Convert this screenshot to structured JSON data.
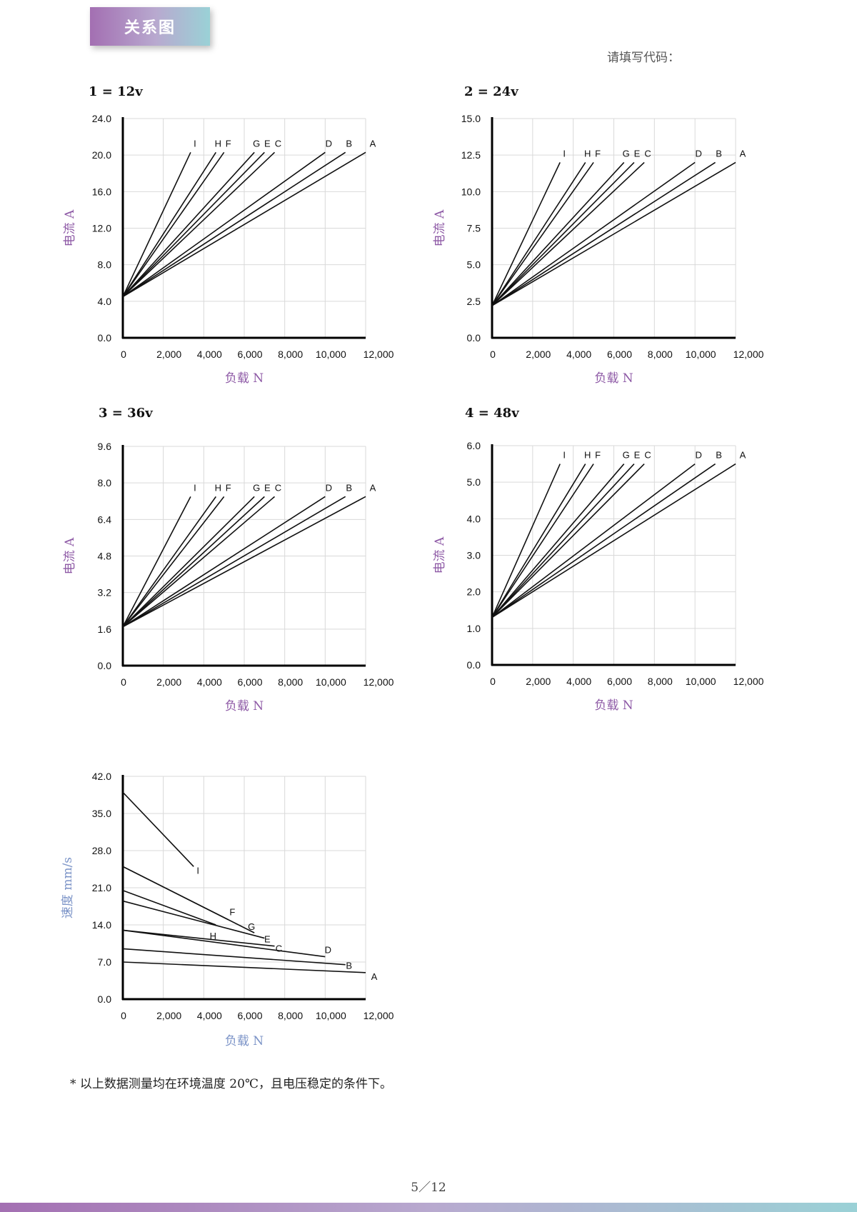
{
  "header": {
    "title": "关系图"
  },
  "code_label": "请填写代码：",
  "footnote": "* 以上数据测量均在环境温度 20℃，且电压稳定的条件下。",
  "page_number": "5／12",
  "colors": {
    "accent_purple": "#8e5aa6",
    "speed_label_blue": "#7b93c7",
    "line": "#111111",
    "grid": "#d9d9d9"
  },
  "chart_data": [
    {
      "type": "line",
      "title": "1 = 12v",
      "xlabel": "负载 N",
      "ylabel": "电流 A",
      "xlim": [
        0,
        12000
      ],
      "ylim": [
        0,
        24
      ],
      "x_ticks": [
        "0",
        "2,000",
        "4,000",
        "6,000",
        "8,000",
        "10,000",
        "12,000"
      ],
      "y_ticks": [
        "0.0",
        "4.0",
        "8.0",
        "12.0",
        "16.0",
        "20.0",
        "24.0"
      ],
      "grid": true,
      "series": [
        {
          "name": "I",
          "x": [
            0,
            3350
          ],
          "y": [
            4.5,
            20.3
          ]
        },
        {
          "name": "H",
          "x": [
            0,
            4600
          ],
          "y": [
            4.5,
            20.3
          ]
        },
        {
          "name": "F",
          "x": [
            0,
            5000
          ],
          "y": [
            4.5,
            20.3
          ]
        },
        {
          "name": "G",
          "x": [
            0,
            6500
          ],
          "y": [
            4.5,
            20.3
          ]
        },
        {
          "name": "E",
          "x": [
            0,
            7000
          ],
          "y": [
            4.5,
            20.3
          ]
        },
        {
          "name": "C",
          "x": [
            0,
            7500
          ],
          "y": [
            4.5,
            20.3
          ]
        },
        {
          "name": "D",
          "x": [
            0,
            10000
          ],
          "y": [
            4.5,
            20.3
          ]
        },
        {
          "name": "B",
          "x": [
            0,
            11000
          ],
          "y": [
            4.5,
            20.3
          ]
        },
        {
          "name": "A",
          "x": [
            0,
            12000
          ],
          "y": [
            4.5,
            20.3
          ]
        }
      ]
    },
    {
      "type": "line",
      "title": "2 = 24v",
      "xlabel": "负载 N",
      "ylabel": "电流 A",
      "xlim": [
        0,
        12000
      ],
      "ylim": [
        0,
        15
      ],
      "x_ticks": [
        "0",
        "2,000",
        "4,000",
        "6,000",
        "8,000",
        "10,000",
        "12,000"
      ],
      "y_ticks": [
        "0.0",
        "2.5",
        "5.0",
        "7.5",
        "10.0",
        "12.5",
        "15.0"
      ],
      "grid": true,
      "series": [
        {
          "name": "I",
          "x": [
            0,
            3350
          ],
          "y": [
            2.2,
            12.0
          ]
        },
        {
          "name": "H",
          "x": [
            0,
            4600
          ],
          "y": [
            2.2,
            12.0
          ]
        },
        {
          "name": "F",
          "x": [
            0,
            5000
          ],
          "y": [
            2.2,
            12.0
          ]
        },
        {
          "name": "G",
          "x": [
            0,
            6500
          ],
          "y": [
            2.2,
            12.0
          ]
        },
        {
          "name": "E",
          "x": [
            0,
            7000
          ],
          "y": [
            2.2,
            12.0
          ]
        },
        {
          "name": "C",
          "x": [
            0,
            7500
          ],
          "y": [
            2.2,
            12.0
          ]
        },
        {
          "name": "D",
          "x": [
            0,
            10000
          ],
          "y": [
            2.2,
            12.0
          ]
        },
        {
          "name": "B",
          "x": [
            0,
            11000
          ],
          "y": [
            2.2,
            12.0
          ]
        },
        {
          "name": "A",
          "x": [
            0,
            12000
          ],
          "y": [
            2.2,
            12.0
          ]
        }
      ]
    },
    {
      "type": "line",
      "title": "3 = 36v",
      "xlabel": "负载 N",
      "ylabel": "电流 A",
      "xlim": [
        0,
        12000
      ],
      "ylim": [
        0,
        9.6
      ],
      "x_ticks": [
        "0",
        "2,000",
        "4,000",
        "6,000",
        "8,000",
        "10,000",
        "12,000"
      ],
      "y_ticks": [
        "0.0",
        "1.6",
        "3.2",
        "4.8",
        "6.4",
        "8.0",
        "9.6"
      ],
      "grid": true,
      "series": [
        {
          "name": "I",
          "x": [
            0,
            3350
          ],
          "y": [
            1.7,
            7.4
          ]
        },
        {
          "name": "H",
          "x": [
            0,
            4600
          ],
          "y": [
            1.7,
            7.4
          ]
        },
        {
          "name": "F",
          "x": [
            0,
            5000
          ],
          "y": [
            1.7,
            7.4
          ]
        },
        {
          "name": "G",
          "x": [
            0,
            6500
          ],
          "y": [
            1.7,
            7.4
          ]
        },
        {
          "name": "E",
          "x": [
            0,
            7000
          ],
          "y": [
            1.7,
            7.4
          ]
        },
        {
          "name": "C",
          "x": [
            0,
            7500
          ],
          "y": [
            1.7,
            7.4
          ]
        },
        {
          "name": "D",
          "x": [
            0,
            10000
          ],
          "y": [
            1.7,
            7.4
          ]
        },
        {
          "name": "B",
          "x": [
            0,
            11000
          ],
          "y": [
            1.7,
            7.4
          ]
        },
        {
          "name": "A",
          "x": [
            0,
            12000
          ],
          "y": [
            1.7,
            7.4
          ]
        }
      ]
    },
    {
      "type": "line",
      "title": "4 = 48v",
      "xlabel": "负载 N",
      "ylabel": "电流 A",
      "xlim": [
        0,
        12000
      ],
      "ylim": [
        0,
        6
      ],
      "x_ticks": [
        "0",
        "2,000",
        "4,000",
        "6,000",
        "8,000",
        "10,000",
        "12,000"
      ],
      "y_ticks": [
        "0.0",
        "1.0",
        "2.0",
        "3.0",
        "4.0",
        "5.0",
        "6.0"
      ],
      "grid": true,
      "series": [
        {
          "name": "I",
          "x": [
            0,
            3350
          ],
          "y": [
            1.3,
            5.5
          ]
        },
        {
          "name": "H",
          "x": [
            0,
            4600
          ],
          "y": [
            1.3,
            5.5
          ]
        },
        {
          "name": "F",
          "x": [
            0,
            5000
          ],
          "y": [
            1.3,
            5.5
          ]
        },
        {
          "name": "G",
          "x": [
            0,
            6500
          ],
          "y": [
            1.3,
            5.5
          ]
        },
        {
          "name": "E",
          "x": [
            0,
            7000
          ],
          "y": [
            1.3,
            5.5
          ]
        },
        {
          "name": "C",
          "x": [
            0,
            7500
          ],
          "y": [
            1.3,
            5.5
          ]
        },
        {
          "name": "D",
          "x": [
            0,
            10000
          ],
          "y": [
            1.3,
            5.5
          ]
        },
        {
          "name": "B",
          "x": [
            0,
            11000
          ],
          "y": [
            1.3,
            5.5
          ]
        },
        {
          "name": "A",
          "x": [
            0,
            12000
          ],
          "y": [
            1.3,
            5.5
          ]
        }
      ]
    },
    {
      "type": "line",
      "title": "",
      "xlabel": "负载 N",
      "ylabel": "速度 mm/s",
      "xlim": [
        0,
        12000
      ],
      "ylim": [
        0,
        42
      ],
      "x_ticks": [
        "0",
        "2,000",
        "4,000",
        "6,000",
        "8,000",
        "10,000",
        "12,000"
      ],
      "y_ticks": [
        "0.0",
        "7.0",
        "14.0",
        "21.0",
        "28.0",
        "35.0",
        "42.0"
      ],
      "grid": true,
      "series": [
        {
          "name": "I",
          "x": [
            0,
            3500
          ],
          "y": [
            39,
            25
          ]
        },
        {
          "name": "F",
          "x": [
            0,
            5200
          ],
          "y": [
            25,
            15
          ]
        },
        {
          "name": "H",
          "x": [
            0,
            4600
          ],
          "y": [
            20.5,
            14
          ]
        },
        {
          "name": "G",
          "x": [
            0,
            6500
          ],
          "y": [
            25,
            12.5
          ]
        },
        {
          "name": "E",
          "x": [
            0,
            7000
          ],
          "y": [
            18.5,
            11.5
          ]
        },
        {
          "name": "C",
          "x": [
            0,
            7500
          ],
          "y": [
            13,
            10
          ]
        },
        {
          "name": "D",
          "x": [
            0,
            10000
          ],
          "y": [
            13,
            8
          ]
        },
        {
          "name": "B",
          "x": [
            0,
            11000
          ],
          "y": [
            9.5,
            6.5
          ]
        },
        {
          "name": "A",
          "x": [
            0,
            12000
          ],
          "y": [
            7,
            5
          ]
        }
      ]
    }
  ]
}
